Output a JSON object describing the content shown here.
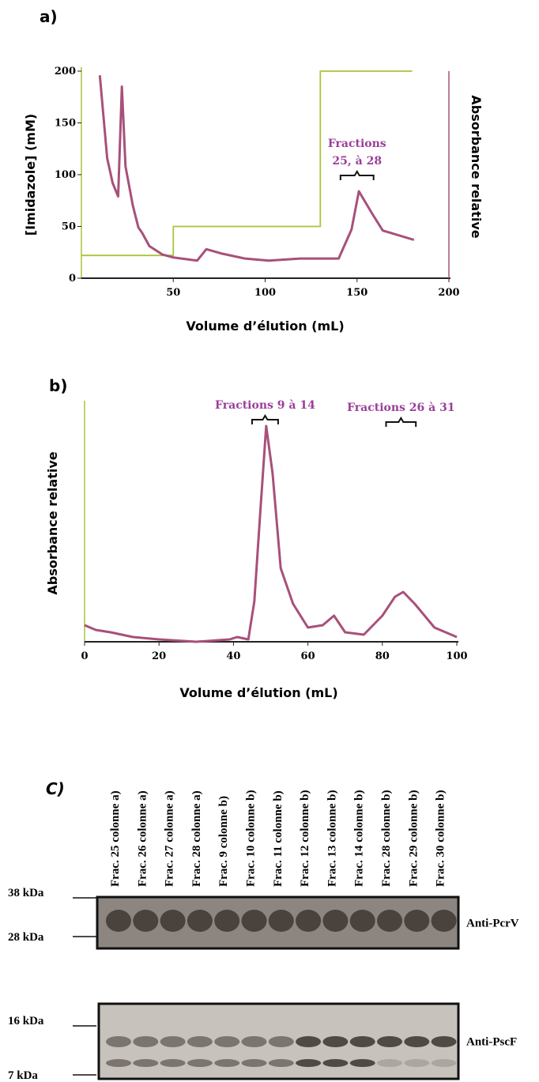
{
  "chart_data": [
    {
      "type": "line",
      "label": "a)",
      "x_label": "Volume d’élution (mL)",
      "y_label": "[Imidazole] (mM)",
      "y2_label": "Absorbance relative",
      "xlim": [
        0,
        200
      ],
      "xticks": [
        50,
        100,
        150,
        200
      ],
      "ylim": [
        0,
        200
      ],
      "yticks": [
        0,
        50,
        100,
        150,
        200
      ],
      "grid": false,
      "series": [
        {
          "name": "[Imidazole]",
          "color": "#a8c43a",
          "x": [
            0,
            50,
            50,
            130,
            130,
            180
          ],
          "values": [
            22,
            22,
            50,
            50,
            200,
            200
          ]
        },
        {
          "name": "Absorbance relative",
          "color": "#a8507a",
          "x": [
            10,
            14,
            17,
            20,
            22,
            24,
            28,
            31,
            33,
            37,
            44,
            50,
            63,
            68,
            76,
            89,
            102,
            119,
            140,
            147,
            151,
            158,
            164,
            181
          ],
          "values": [
            196,
            116,
            92,
            79,
            185,
            108,
            70,
            49,
            44,
            31,
            23,
            20,
            17,
            28,
            24,
            19,
            17,
            19,
            19,
            47,
            84,
            63,
            46,
            37
          ]
        }
      ],
      "annotations": [
        {
          "text": [
            "Fractions",
            "25, à 28"
          ],
          "range": [
            141,
            159
          ]
        }
      ]
    },
    {
      "type": "line",
      "label": "b)",
      "x_label": "Volume d’élution (mL)",
      "y_label": "Absorbance relative",
      "xlim": [
        0,
        100
      ],
      "xticks": [
        0,
        20,
        40,
        60,
        80,
        100
      ],
      "ylim": [
        0,
        1
      ],
      "grid": false,
      "series": [
        {
          "name": "Absorbance relative",
          "color": "#a8507a",
          "x": [
            0,
            3,
            7,
            13,
            20,
            30,
            39,
            41,
            44,
            45.6,
            47.3,
            48.8,
            50.5,
            52.7,
            56,
            60,
            64,
            67,
            70,
            75,
            80,
            83.4,
            85.6,
            88.7,
            94,
            100
          ],
          "values": [
            0.07,
            0.05,
            0.04,
            0.02,
            0.01,
            0.0,
            0.01,
            0.02,
            0.01,
            0.17,
            0.57,
            0.91,
            0.71,
            0.31,
            0.16,
            0.06,
            0.07,
            0.11,
            0.04,
            0.03,
            0.11,
            0.19,
            0.21,
            0.16,
            0.06,
            0.02
          ]
        }
      ],
      "annotations": [
        {
          "text": [
            "Fractions 9 à 14"
          ],
          "range": [
            45,
            52
          ]
        },
        {
          "text": [
            "Fractions 26 à 31"
          ],
          "range": [
            81,
            89
          ]
        }
      ]
    }
  ],
  "blot": {
    "label": "C)",
    "lanes": [
      "Frac. 25 colonne a)",
      "Frac. 26 colonne a)",
      "Frac. 27 colonne a)",
      "Frac. 28 colonne a)",
      "Frac. 9 colonne b)",
      "Frac. 10 colonne b)",
      "Frac. 11 colonne b)",
      "Frac. 12 colonne b)",
      "Frac. 13 colonne b)",
      "Frac. 14 colonne b)",
      "Frac. 28 colonne b)",
      "Frac. 29 colonne b)",
      "Frac. 30 colonne b)"
    ],
    "panels": [
      {
        "antibody": "Anti-PcrV",
        "markers": [
          "38 kDa",
          "28 kDa"
        ]
      },
      {
        "antibody": "Anti-PscF",
        "markers": [
          "16 kDa",
          "7 kDa"
        ]
      }
    ]
  }
}
